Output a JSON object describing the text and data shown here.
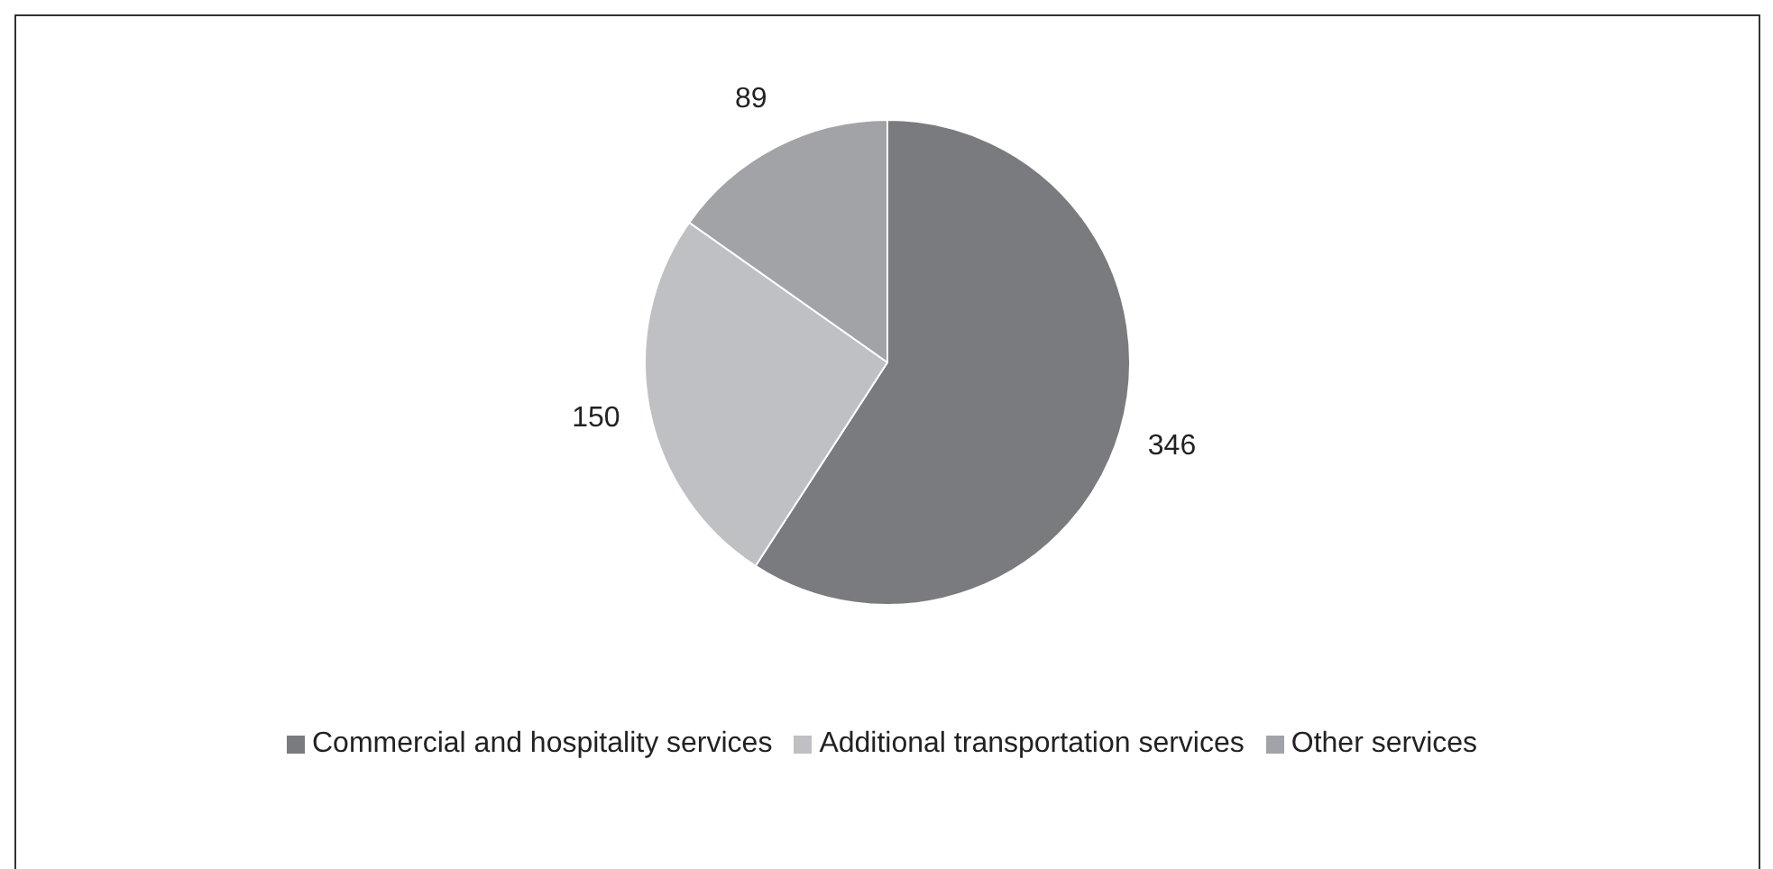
{
  "chart_data": {
    "type": "pie",
    "categories": [
      "Commercial and hospitality services",
      "Additional transportation services",
      "Other services"
    ],
    "values": [
      346,
      150,
      89
    ],
    "colors": [
      "#7a7b7f",
      "#bfc0c4",
      "#a2a3a7"
    ],
    "data_labels": true,
    "legend": "bottom"
  }
}
